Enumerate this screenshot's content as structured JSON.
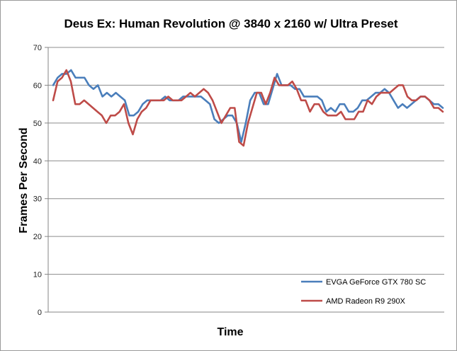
{
  "chart_data": {
    "type": "line",
    "title": "Deus Ex: Human Revolution @ 3840 x 2160 w/ Ultra Preset",
    "xlabel": "Time",
    "ylabel": "Frames Per Second",
    "ylim": [
      0,
      70
    ],
    "yticks": [
      "0",
      "10",
      "20",
      "30",
      "40",
      "50",
      "60",
      "70"
    ],
    "grid": "horizontal",
    "legend_position": "bottom-right",
    "series": [
      {
        "name": "EVGA GeForce GTX 780 SC",
        "color": "#4a7ebb",
        "values": [
          60,
          62,
          63,
          63,
          64,
          62,
          62,
          62,
          60,
          59,
          60,
          57,
          58,
          57,
          58,
          57,
          56,
          52,
          52,
          53,
          55,
          56,
          56,
          56,
          56,
          57,
          56,
          56,
          56,
          57,
          57,
          57,
          57,
          57,
          56,
          55,
          51,
          50,
          51,
          52,
          52,
          50,
          45,
          50,
          56,
          58,
          58,
          55,
          55,
          59,
          63,
          60,
          60,
          60,
          59,
          59,
          57,
          57,
          57,
          57,
          56,
          53,
          54,
          53,
          55,
          55,
          53,
          53,
          54,
          56,
          56,
          57,
          58,
          58,
          59,
          58,
          56,
          54,
          55,
          54,
          55,
          56,
          57,
          57,
          56,
          55,
          55,
          54
        ]
      },
      {
        "name": "AMD Radeon R9 290X",
        "color": "#be4b48",
        "values": [
          56,
          61,
          62,
          64,
          61,
          55,
          55,
          56,
          55,
          54,
          53,
          52,
          50,
          52,
          52,
          53,
          55,
          50,
          47,
          51,
          53,
          54,
          56,
          56,
          56,
          56,
          57,
          56,
          56,
          56,
          57,
          58,
          57,
          58,
          59,
          58,
          56,
          53,
          50,
          52,
          54,
          54,
          45,
          44,
          50,
          54,
          58,
          58,
          55,
          58,
          62,
          60,
          60,
          60,
          61,
          59,
          56,
          56,
          53,
          55,
          55,
          53,
          52,
          52,
          52,
          53,
          51,
          51,
          51,
          53,
          53,
          56,
          55,
          57,
          58,
          58,
          58,
          59,
          60,
          60,
          57,
          56,
          56,
          57,
          57,
          56,
          54,
          54,
          53
        ]
      }
    ]
  }
}
